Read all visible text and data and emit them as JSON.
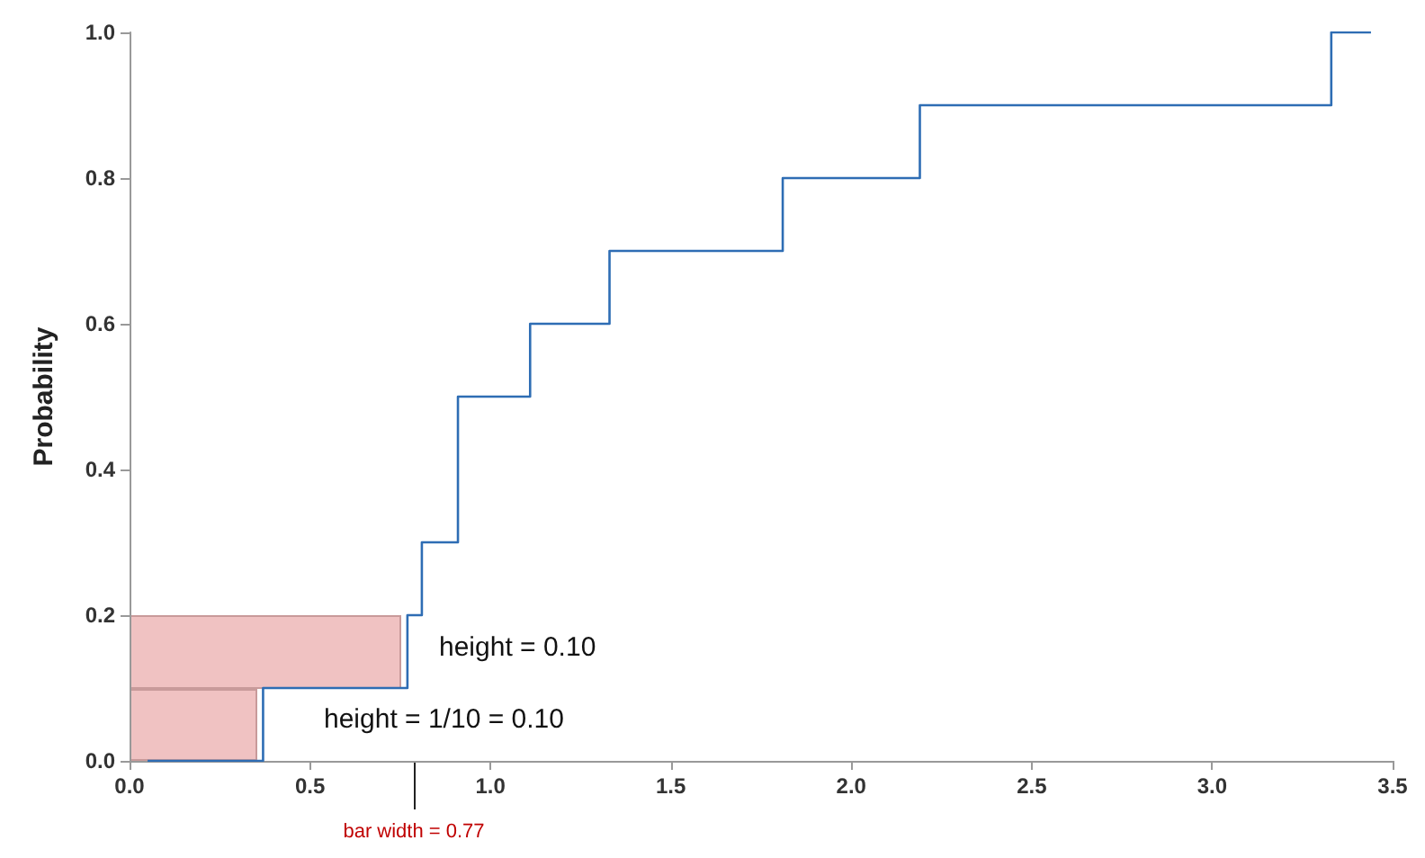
{
  "chart_data": {
    "type": "step",
    "ylabel": "Probability",
    "xlim": [
      0,
      3.5
    ],
    "xticks": [
      {
        "value": 0,
        "label": "0.0"
      },
      {
        "value": 0.5,
        "label": "0.5"
      },
      {
        "value": 1,
        "label": "1.0"
      },
      {
        "value": 1.5,
        "label": "1.5"
      },
      {
        "value": 2,
        "label": "2.0"
      },
      {
        "value": 2.5,
        "label": "2.5"
      },
      {
        "value": 3,
        "label": "3.0"
      },
      {
        "value": 3.5,
        "label": "3.5"
      }
    ],
    "ylim": [
      0,
      1
    ],
    "yticks": [
      {
        "value": 0,
        "label": "0.0"
      },
      {
        "value": 0.2,
        "label": "0.2"
      },
      {
        "value": 0.4,
        "label": "0.4"
      },
      {
        "value": 0.6,
        "label": "0.6"
      },
      {
        "value": 0.8,
        "label": "0.8"
      },
      {
        "value": 1,
        "label": "1.0"
      }
    ],
    "grid": false,
    "series": [
      {
        "color": "#2e6db4",
        "x": [
          0.05,
          0.37,
          0.77,
          0.81,
          0.91,
          1.11,
          1.33,
          1.81,
          2.19,
          3.33,
          3.44
        ],
        "values": [
          0,
          0.1,
          0.2,
          0.3,
          0.5,
          0.6,
          0.7,
          0.8,
          0.9,
          1.0,
          1.0
        ]
      }
    ],
    "annotations": [
      "height = 0.10",
      "height = 1/10 = 0.10",
      "bar width = 0.77"
    ]
  }
}
